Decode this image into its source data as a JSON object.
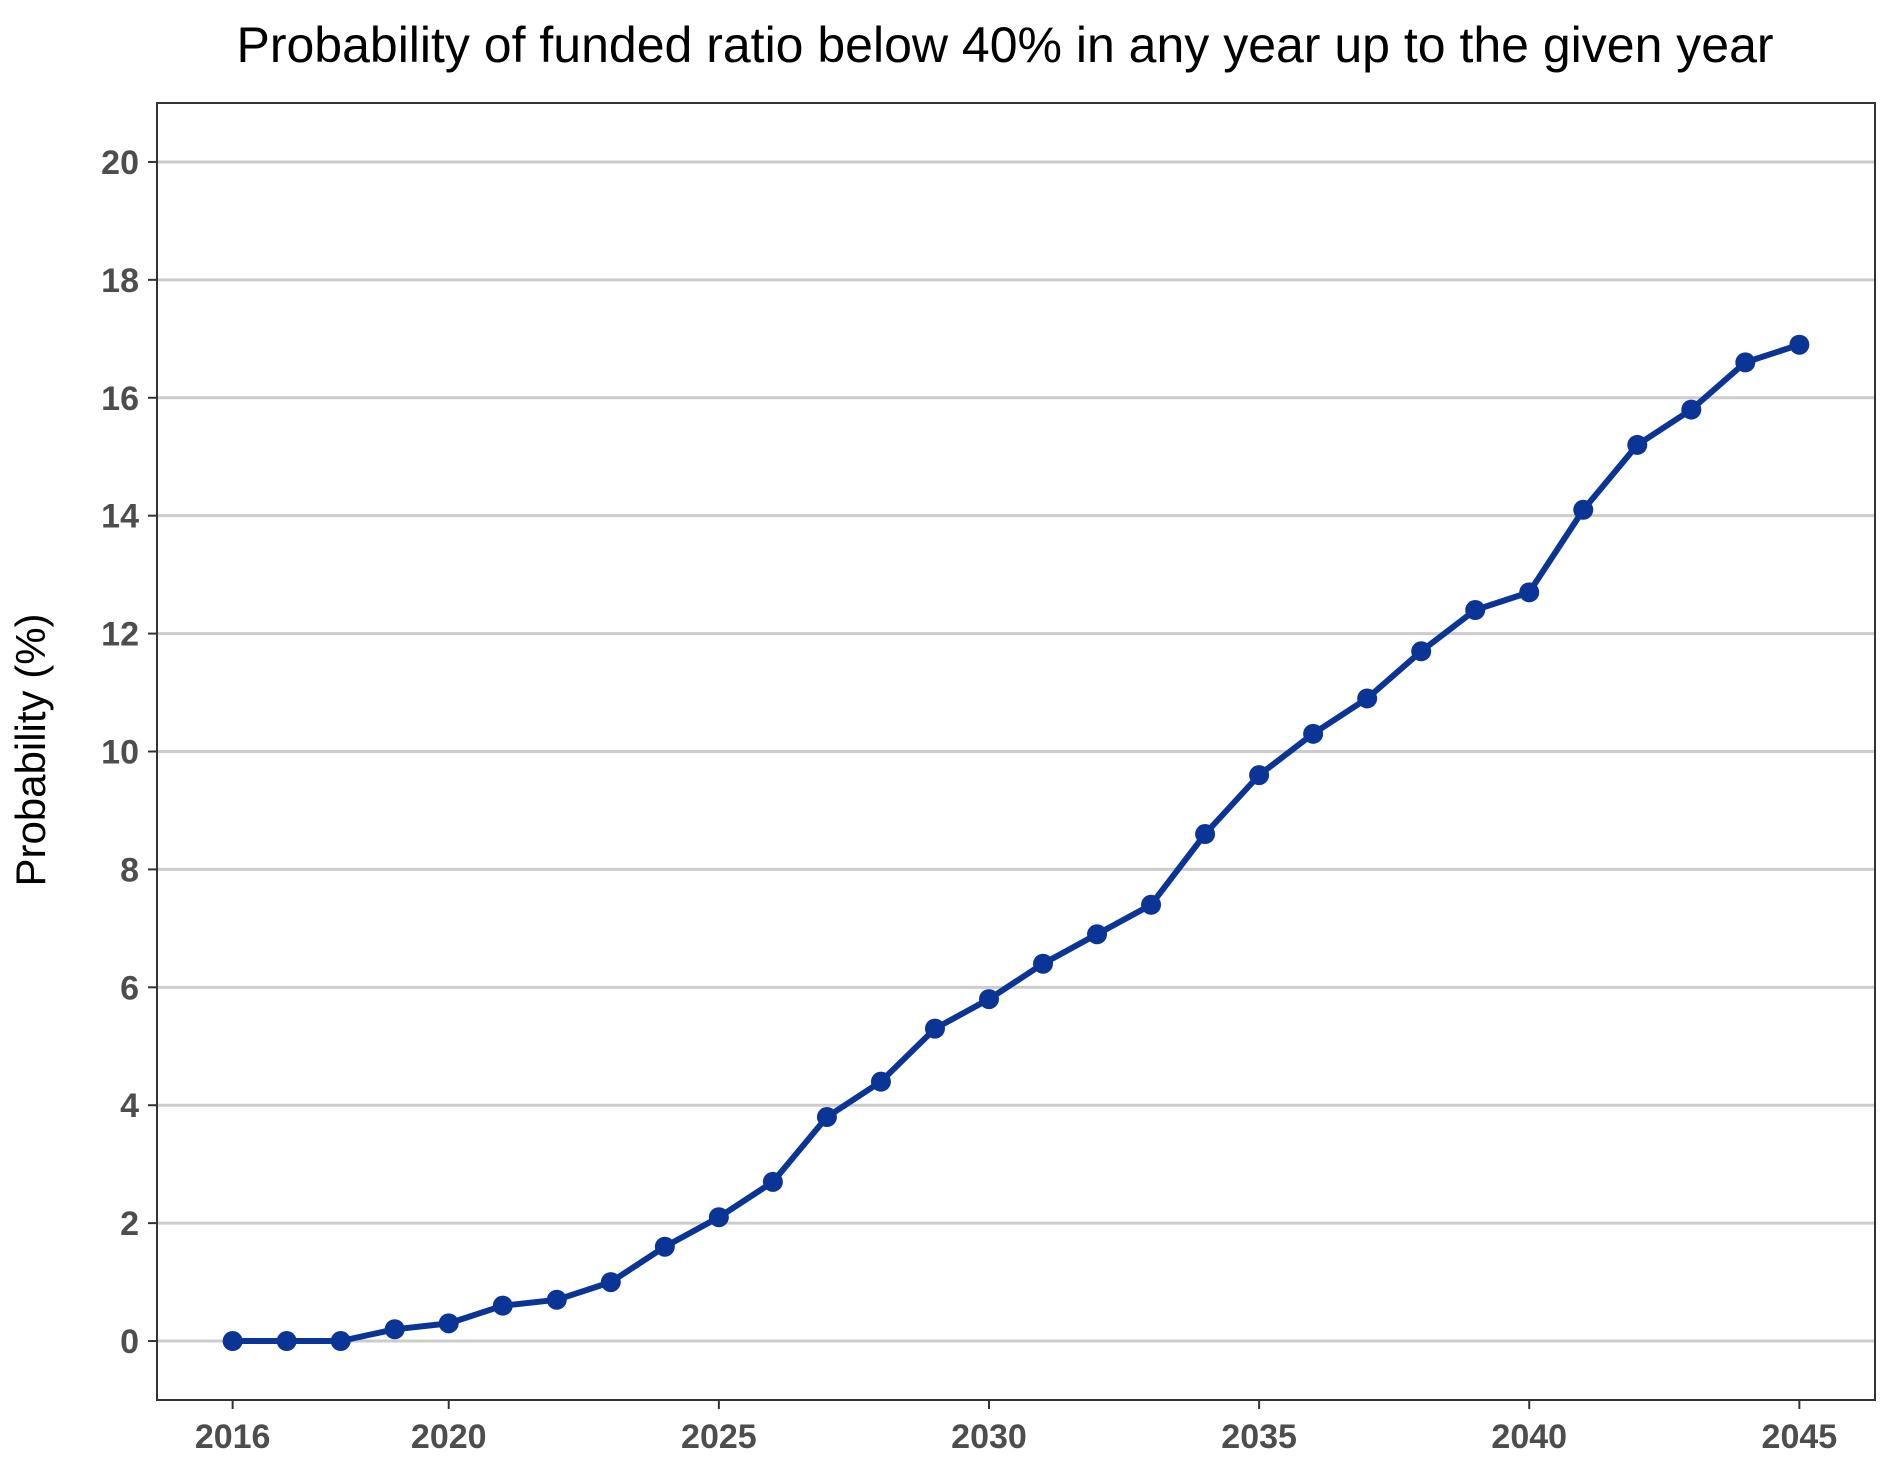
{
  "chart_data": {
    "type": "line",
    "title": "Probability of funded ratio below 40% in any year up to the given year",
    "xlabel": "",
    "ylabel": "Probability (%)",
    "x": [
      2016,
      2017,
      2018,
      2019,
      2020,
      2021,
      2022,
      2023,
      2024,
      2025,
      2026,
      2027,
      2028,
      2029,
      2030,
      2031,
      2032,
      2033,
      2034,
      2035,
      2036,
      2037,
      2038,
      2039,
      2040,
      2041,
      2042,
      2043,
      2044,
      2045
    ],
    "series": [
      {
        "values": [
          0,
          0,
          0,
          0.2,
          0.3,
          0.6,
          0.7,
          1.0,
          1.6,
          2.1,
          2.7,
          3.8,
          4.4,
          5.3,
          5.8,
          6.4,
          6.9,
          7.4,
          8.6,
          9.6,
          10.3,
          10.9,
          11.7,
          12.4,
          12.7,
          14.1,
          15.2,
          15.8,
          16.6,
          16.9
        ],
        "color": "#0a3596"
      }
    ],
    "xlim": [
      2014.6,
      2046.4
    ],
    "ylim": [
      -1,
      21
    ],
    "xticks": [
      "2016",
      "2020",
      "2025",
      "2030",
      "2035",
      "2040",
      "2045"
    ],
    "yticks": [
      "0",
      "2",
      "4",
      "6",
      "8",
      "10",
      "12",
      "14",
      "16",
      "18",
      "20"
    ],
    "grid": "horizontal major",
    "legend": "none"
  }
}
